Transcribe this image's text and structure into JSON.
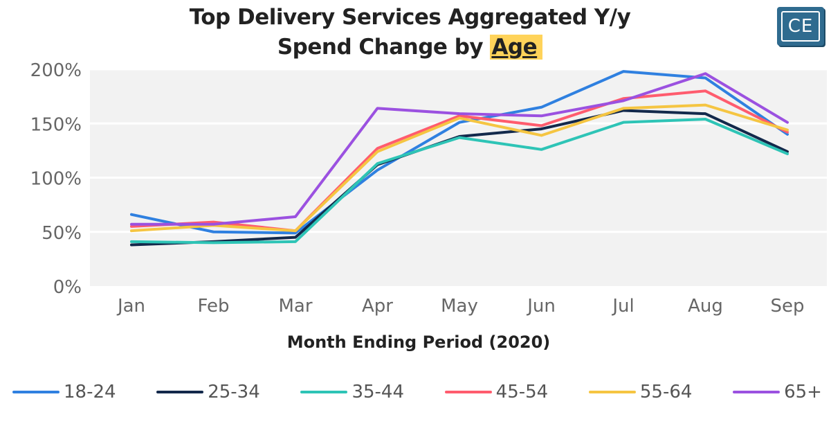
{
  "chart_data": {
    "type": "line",
    "title_line1": "Top Delivery Services Aggregated Y/y",
    "title_line2_prefix": "Spend Change by ",
    "title_line2_highlight": "Age",
    "xlabel": "Month Ending Period (2020)",
    "ylabel": "",
    "categories": [
      "Jan",
      "Feb",
      "Mar",
      "Apr",
      "May",
      "Jun",
      "Jul",
      "Aug",
      "Sep"
    ],
    "ylim": [
      0,
      200
    ],
    "yticks": [
      "0%",
      "50%",
      "100%",
      "150%",
      "200%"
    ],
    "grid": true,
    "legend_position": "bottom",
    "series": [
      {
        "name": "18-24",
        "color": "#2F80E0",
        "values": [
          66,
          50,
          49,
          107,
          151,
          165,
          198,
          192,
          140
        ]
      },
      {
        "name": "25-34",
        "color": "#13294B",
        "values": [
          38,
          41,
          45,
          112,
          138,
          145,
          162,
          159,
          124
        ]
      },
      {
        "name": "35-44",
        "color": "#2EC4B6",
        "values": [
          41,
          40,
          41,
          113,
          137,
          126,
          151,
          154,
          122
        ]
      },
      {
        "name": "45-54",
        "color": "#FF5C6E",
        "values": [
          55,
          59,
          51,
          127,
          157,
          148,
          173,
          180,
          142
        ]
      },
      {
        "name": "55-64",
        "color": "#F5C542",
        "values": [
          51,
          56,
          51,
          124,
          155,
          139,
          164,
          167,
          144
        ]
      },
      {
        "name": "65+",
        "color": "#9B51E0",
        "values": [
          57,
          57,
          64,
          164,
          159,
          157,
          171,
          196,
          151
        ]
      }
    ]
  },
  "logo_text": "CE"
}
